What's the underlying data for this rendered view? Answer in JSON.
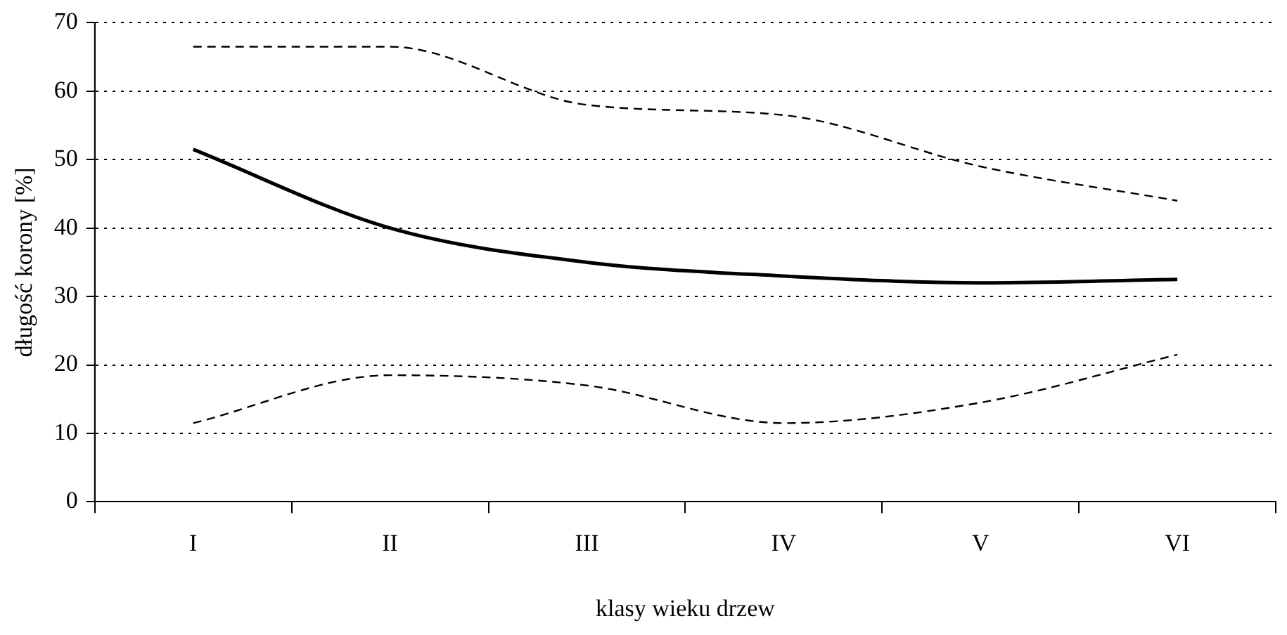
{
  "chart_data": {
    "type": "line",
    "xlabel": "klasy wieku drzew",
    "ylabel": "długość korony [%]",
    "categories": [
      "I",
      "II",
      "III",
      "IV",
      "V",
      "VI"
    ],
    "series": [
      {
        "color": "#000000",
        "line_style": "dashed",
        "values": [
          66.5,
          66.5,
          58,
          56.5,
          49,
          44
        ]
      },
      {
        "color": "#000000",
        "line_style": "solid",
        "values": [
          51.5,
          40,
          35,
          33,
          32,
          32.5
        ]
      },
      {
        "color": "#000000",
        "line_style": "dashed",
        "values": [
          11.5,
          18.5,
          17,
          11.5,
          14.5,
          21.5
        ]
      }
    ],
    "ylim": [
      0,
      70
    ],
    "yticks": [
      0,
      10,
      20,
      30,
      40,
      50,
      60,
      70
    ],
    "grid": "y",
    "legend": false,
    "marker": "none"
  }
}
